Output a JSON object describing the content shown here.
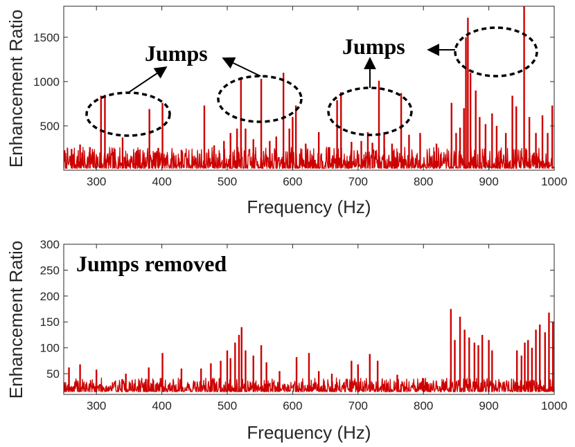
{
  "chart_data": [
    {
      "type": "line",
      "title": "",
      "xlabel": "Frequency (Hz)",
      "ylabel": "Enhancement Ratio",
      "xlim": [
        250,
        1000
      ],
      "ylim": [
        0,
        1850
      ],
      "xticks": [
        300,
        400,
        500,
        600,
        700,
        800,
        900,
        1000
      ],
      "yticks": [
        500,
        1000,
        1500
      ],
      "grid": false,
      "series_color": "#cc0000",
      "baseline_range": [
        20,
        260
      ],
      "peaks": [
        {
          "x": 262,
          "y": 240
        },
        {
          "x": 275,
          "y": 290
        },
        {
          "x": 290,
          "y": 260
        },
        {
          "x": 307,
          "y": 840
        },
        {
          "x": 313,
          "y": 850
        },
        {
          "x": 328,
          "y": 240
        },
        {
          "x": 340,
          "y": 370
        },
        {
          "x": 360,
          "y": 200
        },
        {
          "x": 381,
          "y": 690
        },
        {
          "x": 390,
          "y": 200
        },
        {
          "x": 401,
          "y": 760
        },
        {
          "x": 430,
          "y": 230
        },
        {
          "x": 465,
          "y": 730
        },
        {
          "x": 480,
          "y": 280
        },
        {
          "x": 495,
          "y": 330
        },
        {
          "x": 505,
          "y": 420
        },
        {
          "x": 515,
          "y": 470
        },
        {
          "x": 521,
          "y": 1050
        },
        {
          "x": 528,
          "y": 470
        },
        {
          "x": 540,
          "y": 350
        },
        {
          "x": 552,
          "y": 1030
        },
        {
          "x": 565,
          "y": 330
        },
        {
          "x": 575,
          "y": 380
        },
        {
          "x": 586,
          "y": 1100
        },
        {
          "x": 595,
          "y": 470
        },
        {
          "x": 600,
          "y": 600
        },
        {
          "x": 605,
          "y": 730
        },
        {
          "x": 620,
          "y": 300
        },
        {
          "x": 640,
          "y": 430
        },
        {
          "x": 655,
          "y": 260
        },
        {
          "x": 668,
          "y": 790
        },
        {
          "x": 674,
          "y": 880
        },
        {
          "x": 690,
          "y": 320
        },
        {
          "x": 705,
          "y": 330
        },
        {
          "x": 715,
          "y": 430
        },
        {
          "x": 722,
          "y": 310
        },
        {
          "x": 732,
          "y": 1010
        },
        {
          "x": 740,
          "y": 430
        },
        {
          "x": 752,
          "y": 300
        },
        {
          "x": 766,
          "y": 870
        },
        {
          "x": 778,
          "y": 400
        },
        {
          "x": 795,
          "y": 420
        },
        {
          "x": 820,
          "y": 300
        },
        {
          "x": 843,
          "y": 760
        },
        {
          "x": 850,
          "y": 420
        },
        {
          "x": 856,
          "y": 480
        },
        {
          "x": 862,
          "y": 700
        },
        {
          "x": 865,
          "y": 1500
        },
        {
          "x": 868,
          "y": 1720
        },
        {
          "x": 872,
          "y": 1100
        },
        {
          "x": 880,
          "y": 900
        },
        {
          "x": 886,
          "y": 600
        },
        {
          "x": 895,
          "y": 520
        },
        {
          "x": 905,
          "y": 640
        },
        {
          "x": 912,
          "y": 500
        },
        {
          "x": 926,
          "y": 420
        },
        {
          "x": 936,
          "y": 840
        },
        {
          "x": 942,
          "y": 720
        },
        {
          "x": 954,
          "y": 1860
        },
        {
          "x": 962,
          "y": 600
        },
        {
          "x": 972,
          "y": 420
        },
        {
          "x": 982,
          "y": 620
        },
        {
          "x": 990,
          "y": 420
        },
        {
          "x": 997,
          "y": 730
        }
      ]
    },
    {
      "type": "line",
      "title": "",
      "xlabel": "Frequency (Hz)",
      "ylabel": "Enhancement Ratio",
      "xlim": [
        250,
        1000
      ],
      "ylim": [
        10,
        300
      ],
      "xticks": [
        300,
        400,
        500,
        600,
        700,
        800,
        900,
        1000
      ],
      "yticks": [
        50,
        100,
        150,
        200,
        250,
        300
      ],
      "grid": false,
      "series_color": "#cc0000",
      "baseline_range": [
        15,
        42
      ],
      "peaks": [
        {
          "x": 258,
          "y": 62
        },
        {
          "x": 275,
          "y": 68
        },
        {
          "x": 300,
          "y": 58
        },
        {
          "x": 345,
          "y": 50
        },
        {
          "x": 380,
          "y": 62
        },
        {
          "x": 401,
          "y": 90
        },
        {
          "x": 430,
          "y": 60
        },
        {
          "x": 460,
          "y": 60
        },
        {
          "x": 475,
          "y": 70
        },
        {
          "x": 490,
          "y": 75
        },
        {
          "x": 500,
          "y": 95
        },
        {
          "x": 505,
          "y": 80
        },
        {
          "x": 512,
          "y": 110
        },
        {
          "x": 518,
          "y": 125
        },
        {
          "x": 522,
          "y": 140
        },
        {
          "x": 528,
          "y": 95
        },
        {
          "x": 540,
          "y": 85
        },
        {
          "x": 552,
          "y": 105
        },
        {
          "x": 560,
          "y": 72
        },
        {
          "x": 580,
          "y": 55
        },
        {
          "x": 606,
          "y": 82
        },
        {
          "x": 625,
          "y": 90
        },
        {
          "x": 640,
          "y": 55
        },
        {
          "x": 660,
          "y": 50
        },
        {
          "x": 690,
          "y": 75
        },
        {
          "x": 700,
          "y": 68
        },
        {
          "x": 718,
          "y": 88
        },
        {
          "x": 730,
          "y": 75
        },
        {
          "x": 760,
          "y": 48
        },
        {
          "x": 800,
          "y": 40
        },
        {
          "x": 842,
          "y": 175
        },
        {
          "x": 848,
          "y": 115
        },
        {
          "x": 856,
          "y": 160
        },
        {
          "x": 863,
          "y": 135
        },
        {
          "x": 870,
          "y": 120
        },
        {
          "x": 878,
          "y": 110
        },
        {
          "x": 884,
          "y": 105
        },
        {
          "x": 890,
          "y": 125
        },
        {
          "x": 900,
          "y": 115
        },
        {
          "x": 905,
          "y": 95
        },
        {
          "x": 943,
          "y": 95
        },
        {
          "x": 950,
          "y": 85
        },
        {
          "x": 955,
          "y": 110
        },
        {
          "x": 960,
          "y": 115
        },
        {
          "x": 966,
          "y": 100
        },
        {
          "x": 972,
          "y": 135
        },
        {
          "x": 978,
          "y": 145
        },
        {
          "x": 986,
          "y": 130
        },
        {
          "x": 992,
          "y": 168
        },
        {
          "x": 998,
          "y": 150
        }
      ]
    }
  ],
  "annotations": {
    "top_jumps_1": "Jumps",
    "top_jumps_2": "Jumps",
    "bottom_note": "Jumps removed"
  }
}
